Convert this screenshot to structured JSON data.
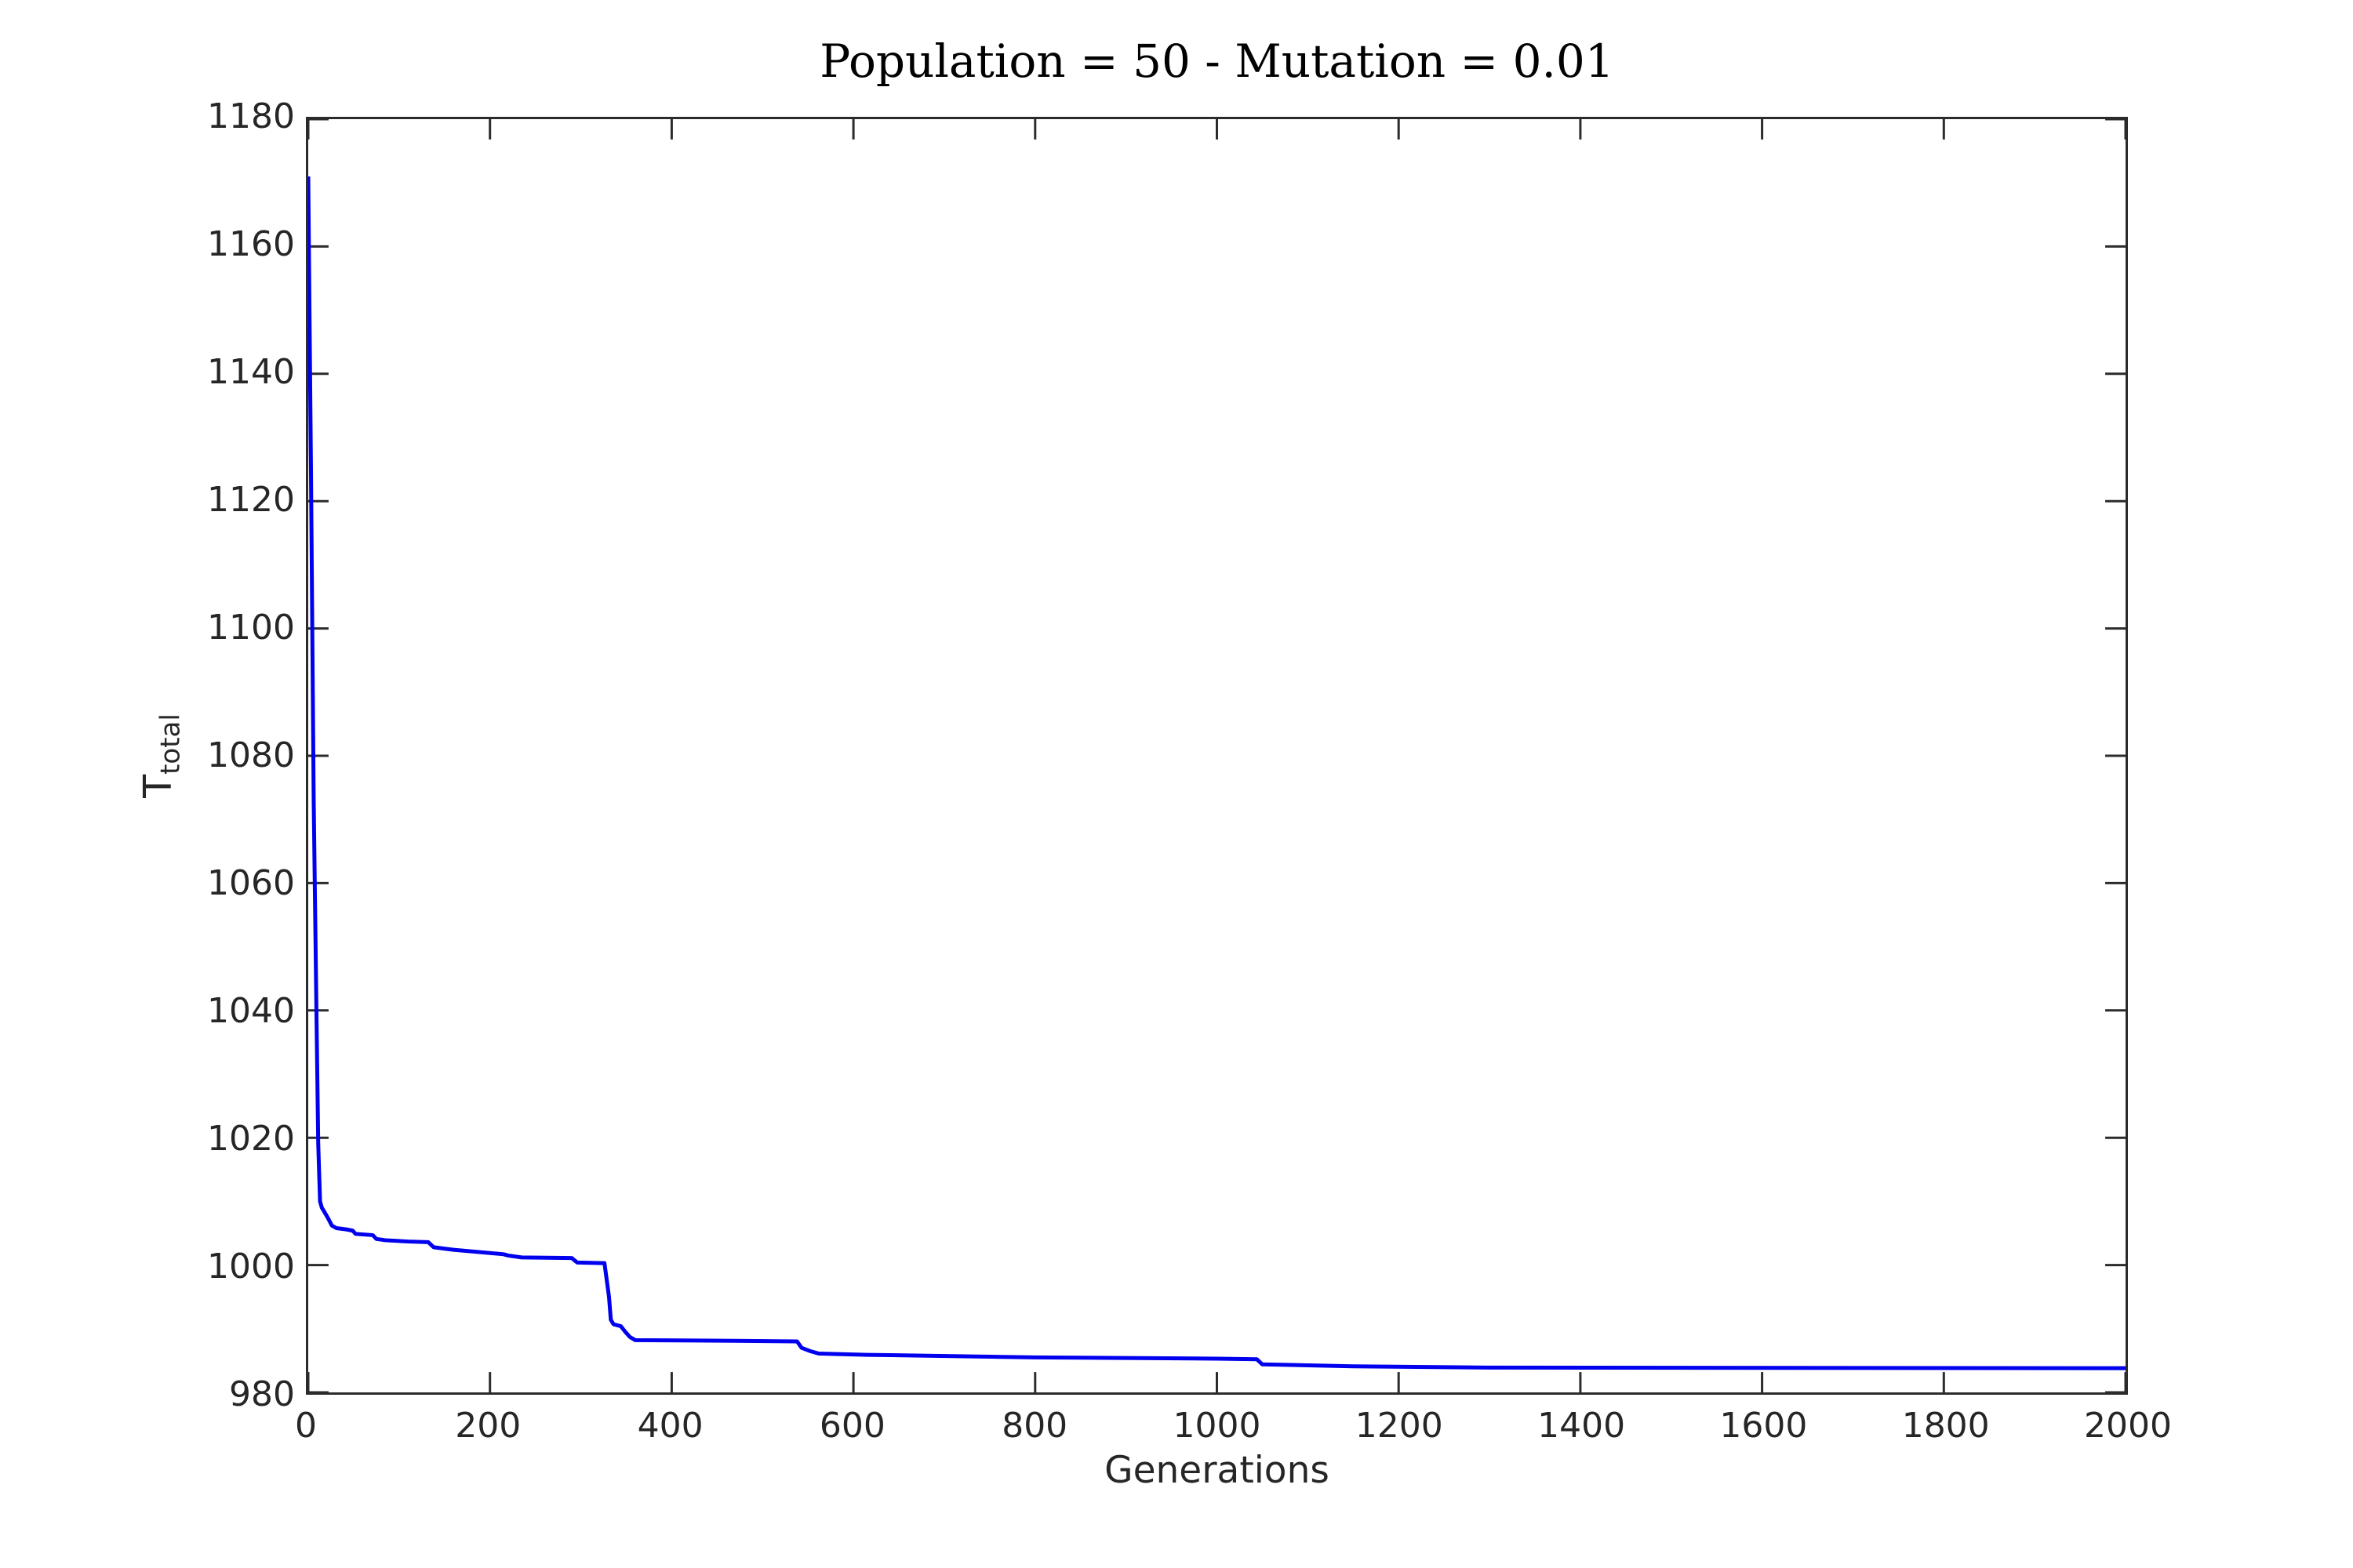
{
  "figure": {
    "title": "Population = 50 - Mutation = 0.01",
    "xlabel": "Generations",
    "ylabel_main": "T",
    "ylabel_sub": "total"
  },
  "chart_data": {
    "type": "line",
    "title": "Population = 50 - Mutation = 0.01",
    "xlabel": "Generations",
    "ylabel": "T_total",
    "xlim": [
      0,
      2000
    ],
    "ylim": [
      980,
      1180
    ],
    "x_ticks": [
      0,
      200,
      400,
      600,
      800,
      1000,
      1200,
      1400,
      1600,
      1800,
      2000
    ],
    "y_ticks": [
      980,
      1000,
      1020,
      1040,
      1060,
      1080,
      1100,
      1120,
      1140,
      1160,
      1180
    ],
    "grid": false,
    "legend": "none",
    "box": true,
    "line_color": "#0000EE",
    "axis_color": "#2b2b2b",
    "tick_label_color": "#262626",
    "series": [
      {
        "name": "",
        "points": [
          [
            0,
            1171
          ],
          [
            3,
            1125
          ],
          [
            6,
            1073
          ],
          [
            9,
            1040
          ],
          [
            11,
            1019
          ],
          [
            13,
            1010
          ],
          [
            15,
            1009
          ],
          [
            18,
            1008.3
          ],
          [
            22,
            1007.3
          ],
          [
            26,
            1006.2
          ],
          [
            31,
            1005.8
          ],
          [
            42,
            1005.6
          ],
          [
            49,
            1005.4
          ],
          [
            52,
            1004.9
          ],
          [
            71,
            1004.7
          ],
          [
            75,
            1004.1
          ],
          [
            85,
            1003.9
          ],
          [
            110,
            1003.7
          ],
          [
            132,
            1003.6
          ],
          [
            138,
            1002.8
          ],
          [
            160,
            1002.4
          ],
          [
            215,
            1001.7
          ],
          [
            220,
            1001.5
          ],
          [
            235,
            1001.2
          ],
          [
            290,
            1001.1
          ],
          [
            296,
            1000.4
          ],
          [
            326,
            1000.3
          ],
          [
            331,
            995
          ],
          [
            333,
            991.4
          ],
          [
            336,
            990.7
          ],
          [
            344,
            990.4
          ],
          [
            349,
            989.5
          ],
          [
            354,
            988.7
          ],
          [
            360,
            988.2
          ],
          [
            470,
            988.1
          ],
          [
            538,
            988.0
          ],
          [
            543,
            987.0
          ],
          [
            552,
            986.5
          ],
          [
            562,
            986.1
          ],
          [
            615,
            985.9
          ],
          [
            800,
            985.5
          ],
          [
            1000,
            985.3
          ],
          [
            1044,
            985.2
          ],
          [
            1050,
            984.4
          ],
          [
            1150,
            984.1
          ],
          [
            1300,
            983.9
          ],
          [
            2000,
            983.8
          ]
        ]
      }
    ]
  }
}
